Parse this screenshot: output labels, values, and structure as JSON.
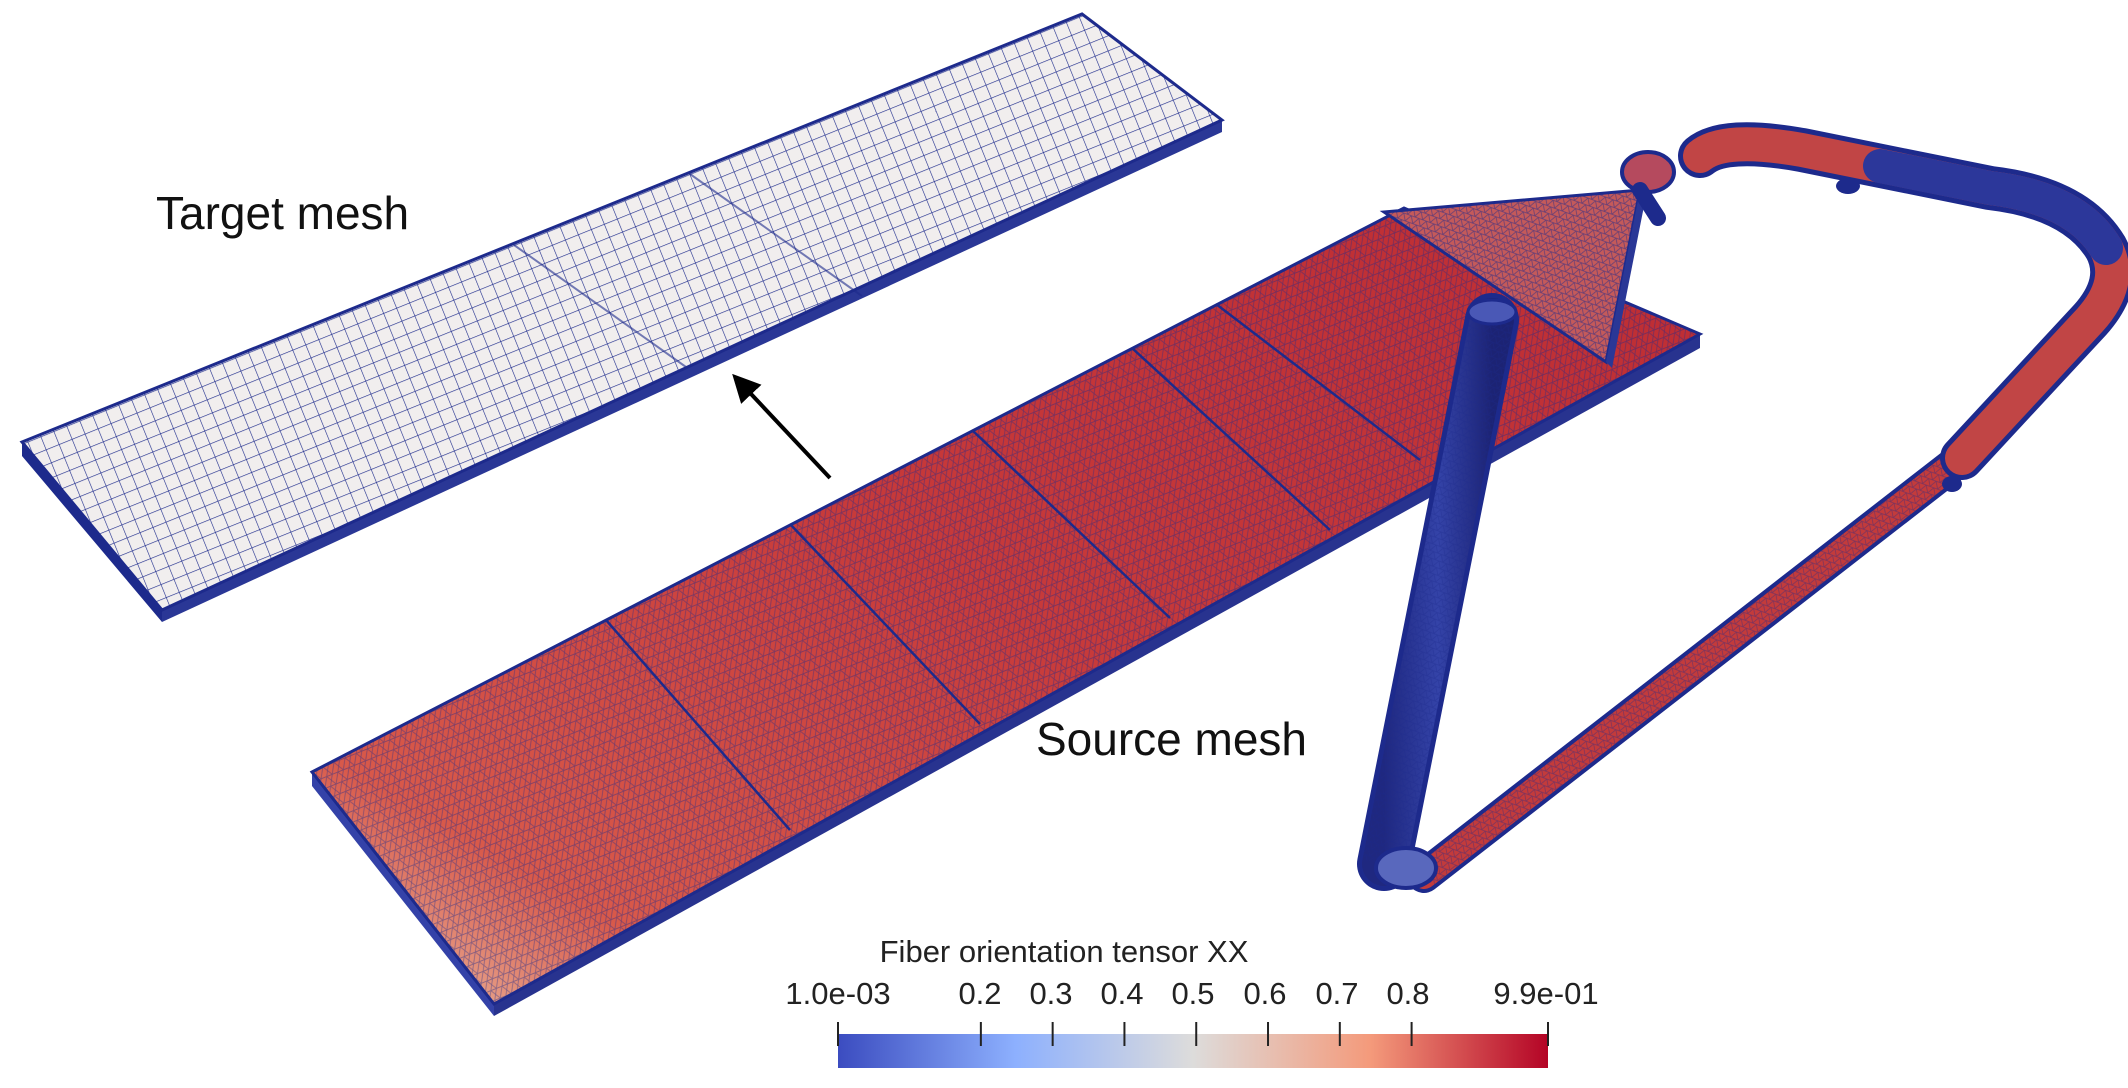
{
  "labels": {
    "target_mesh": "Target mesh",
    "source_mesh": "Source mesh"
  },
  "colorbar": {
    "title": "Fiber orientation tensor XX",
    "min_label": "1.0e-03",
    "max_label": "9.9e-01",
    "ticks": [
      "0.2",
      "0.3",
      "0.4",
      "0.5",
      "0.6",
      "0.7",
      "0.8"
    ],
    "colormap": "cool-to-warm",
    "color_low": "#3b4cc0",
    "color_mid": "#dddcdb",
    "color_high": "#b40426"
  },
  "colors": {
    "mesh_line": "#1d2a8c",
    "target_surface": "#f1eeee",
    "nozzle_blue": "#27308f",
    "arrow": "#000000"
  }
}
